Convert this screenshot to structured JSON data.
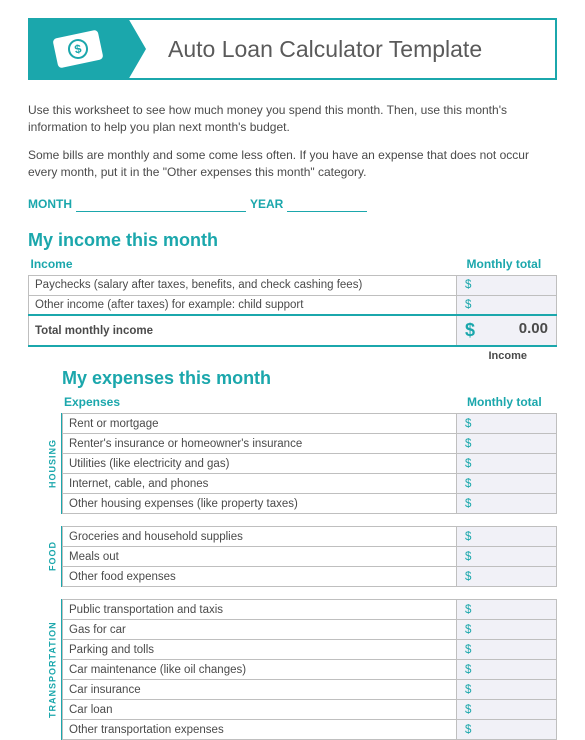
{
  "colors": {
    "teal": "#1ba7ac",
    "text": "#4a4a4a",
    "cell_bg": "#f1f1f7",
    "border": "#bfbfbf",
    "white": "#ffffff"
  },
  "header": {
    "title": "Auto Loan Calculator  Template",
    "icon": "money-bill-icon"
  },
  "intro": {
    "p1": "Use this worksheet to see how much money you spend this month. Then, use this month's information to help you plan next month's budget.",
    "p2": "Some bills are monthly and some come less often. If you have an expense that does not occur every month, put it in the \"Other expenses this month\" category."
  },
  "fields": {
    "month_label": "MONTH",
    "year_label": "YEAR",
    "month_value": "",
    "year_value": ""
  },
  "income": {
    "section_title": "My income this month",
    "col_left": "Income",
    "col_right": "Monthly total",
    "currency": "$",
    "rows": [
      {
        "label": "Paychecks (salary after taxes, benefits, and check cashing fees)",
        "amount": ""
      },
      {
        "label": "Other income (after taxes) for example: child support",
        "amount": ""
      }
    ],
    "total_label": "Total monthly income",
    "total_amount": "0.00",
    "under_label": "Income"
  },
  "expenses": {
    "section_title": "My expenses this month",
    "col_left": "Expenses",
    "col_right": "Monthly total",
    "currency": "$",
    "groups": [
      {
        "side_label": "HOUSING",
        "rows": [
          {
            "label": "Rent or mortgage",
            "amount": ""
          },
          {
            "label": "Renter's insurance or homeowner's insurance",
            "amount": ""
          },
          {
            "label": "Utilities (like electricity and gas)",
            "amount": ""
          },
          {
            "label": "Internet, cable, and phones",
            "amount": ""
          },
          {
            "label": "Other housing expenses (like property taxes)",
            "amount": ""
          }
        ]
      },
      {
        "side_label": "FOOD",
        "rows": [
          {
            "label": "Groceries and household supplies",
            "amount": ""
          },
          {
            "label": "Meals out",
            "amount": ""
          },
          {
            "label": "Other food expenses",
            "amount": ""
          }
        ]
      },
      {
        "side_label": "TRANSPORTATION",
        "rows": [
          {
            "label": "Public transportation and taxis",
            "amount": ""
          },
          {
            "label": "Gas for car",
            "amount": ""
          },
          {
            "label": "Parking and tolls",
            "amount": ""
          },
          {
            "label": "Car maintenance (like oil changes)",
            "amount": ""
          },
          {
            "label": "Car insurance",
            "amount": ""
          },
          {
            "label": "Car loan",
            "amount": ""
          },
          {
            "label": "Other transportation expenses",
            "amount": ""
          }
        ]
      }
    ]
  }
}
